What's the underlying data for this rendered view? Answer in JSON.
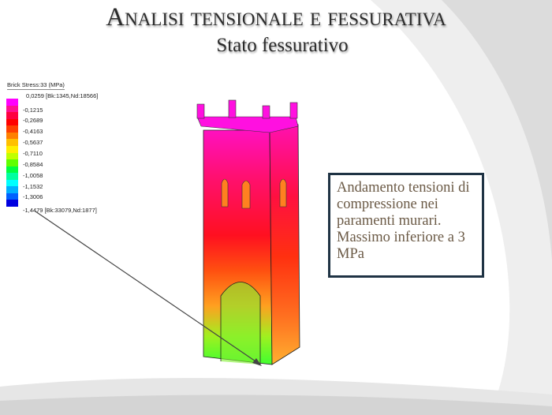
{
  "slide": {
    "title": "Analisi tensionale e fessurativa",
    "subtitle": "Stato fessurativo"
  },
  "legend": {
    "title": "Brick Stress:33  (MPa)",
    "labels": [
      "0,0259 [Bk:1345,Nd:18566]",
      "-0,1215",
      "-0,2689",
      "-0,4163",
      "-0,5637",
      "-0,7110",
      "-0,8584",
      "-1,0058",
      "-1,1532",
      "-1,3006",
      "-1,4479 [Bk:33079,Nd:1877]"
    ],
    "colors": [
      "#ff00ff",
      "#ff1090",
      "#ff0040",
      "#ff0000",
      "#ff4000",
      "#ff8000",
      "#ffc000",
      "#ffee00",
      "#c0ff00",
      "#60ff00",
      "#00ff40",
      "#00ffa0",
      "#00ffff",
      "#00b0ff",
      "#0060ff",
      "#0000e0"
    ]
  },
  "note": {
    "text": "Andamento tensioni di compressione nei paramenti murari. Massimo inferiore a 3 MPa"
  }
}
